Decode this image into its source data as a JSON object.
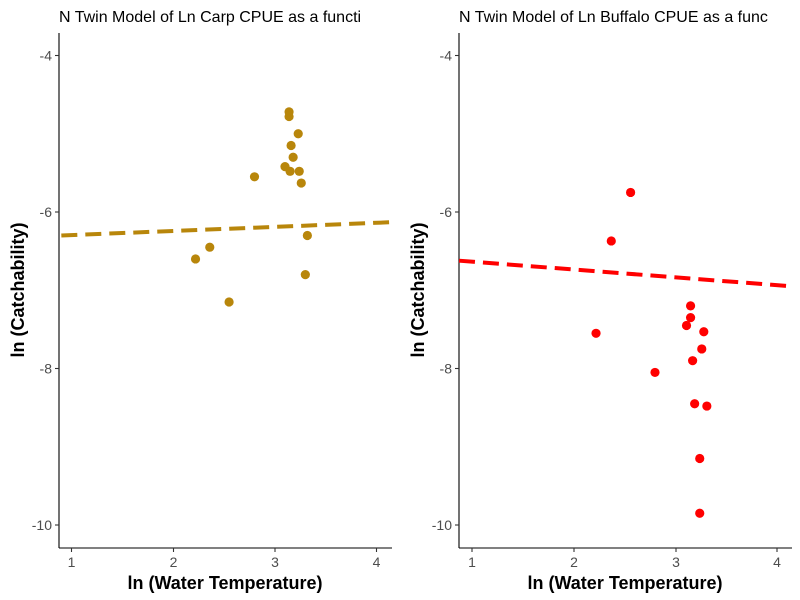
{
  "chart_data": [
    {
      "type": "scatter",
      "title": "N Twin Model of Ln Carp CPUE as a functi",
      "xlabel": "ln (Water Temperature)",
      "ylabel": "ln (Catchability)",
      "xlim": [
        0.9,
        4.15
      ],
      "ylim": [
        -10.25,
        -3.65
      ],
      "x_ticks": [
        1,
        2,
        3,
        4
      ],
      "y_ticks": [
        -4,
        -6,
        -8,
        -10
      ],
      "grid": false,
      "color": "#B8860B",
      "points": [
        {
          "x": 2.22,
          "y": -6.6
        },
        {
          "x": 2.36,
          "y": -6.45
        },
        {
          "x": 2.55,
          "y": -7.15
        },
        {
          "x": 2.8,
          "y": -5.55
        },
        {
          "x": 3.1,
          "y": -5.42
        },
        {
          "x": 3.14,
          "y": -4.72
        },
        {
          "x": 3.14,
          "y": -4.78
        },
        {
          "x": 3.15,
          "y": -5.48
        },
        {
          "x": 3.16,
          "y": -5.15
        },
        {
          "x": 3.18,
          "y": -5.3
        },
        {
          "x": 3.23,
          "y": -5.0
        },
        {
          "x": 3.24,
          "y": -5.48
        },
        {
          "x": 3.26,
          "y": -5.63
        },
        {
          "x": 3.3,
          "y": -6.8
        },
        {
          "x": 3.32,
          "y": -6.3
        }
      ],
      "trend_line": {
        "style": "dashed",
        "x": [
          0.9,
          4.15
        ],
        "y": [
          -6.3,
          -6.13
        ]
      }
    },
    {
      "type": "scatter",
      "title": "N Twin Model of Ln Buffalo CPUE as a func",
      "xlabel": "ln (Water Temperature)",
      "ylabel": "ln (Catchability)",
      "xlim": [
        0.85,
        4.15
      ],
      "ylim": [
        -10.25,
        -3.65
      ],
      "x_ticks": [
        1,
        2,
        3,
        4
      ],
      "y_ticks": [
        -4,
        -6,
        -8,
        -10
      ],
      "grid": false,
      "color": "#FF0000",
      "points": [
        {
          "x": 2.22,
          "y": -7.55
        },
        {
          "x": 2.37,
          "y": -6.37
        },
        {
          "x": 2.56,
          "y": -5.75
        },
        {
          "x": 2.8,
          "y": -8.05
        },
        {
          "x": 3.11,
          "y": -7.45
        },
        {
          "x": 3.15,
          "y": -7.2
        },
        {
          "x": 3.15,
          "y": -7.35
        },
        {
          "x": 3.17,
          "y": -7.9
        },
        {
          "x": 3.19,
          "y": -8.45
        },
        {
          "x": 3.24,
          "y": -9.15
        },
        {
          "x": 3.24,
          "y": -9.85
        },
        {
          "x": 3.26,
          "y": -7.75
        },
        {
          "x": 3.28,
          "y": -7.53
        },
        {
          "x": 3.31,
          "y": -8.48
        }
      ],
      "trend_line": {
        "style": "dashed",
        "x": [
          0.85,
          4.15
        ],
        "y": [
          -6.62,
          -6.95
        ]
      }
    }
  ]
}
